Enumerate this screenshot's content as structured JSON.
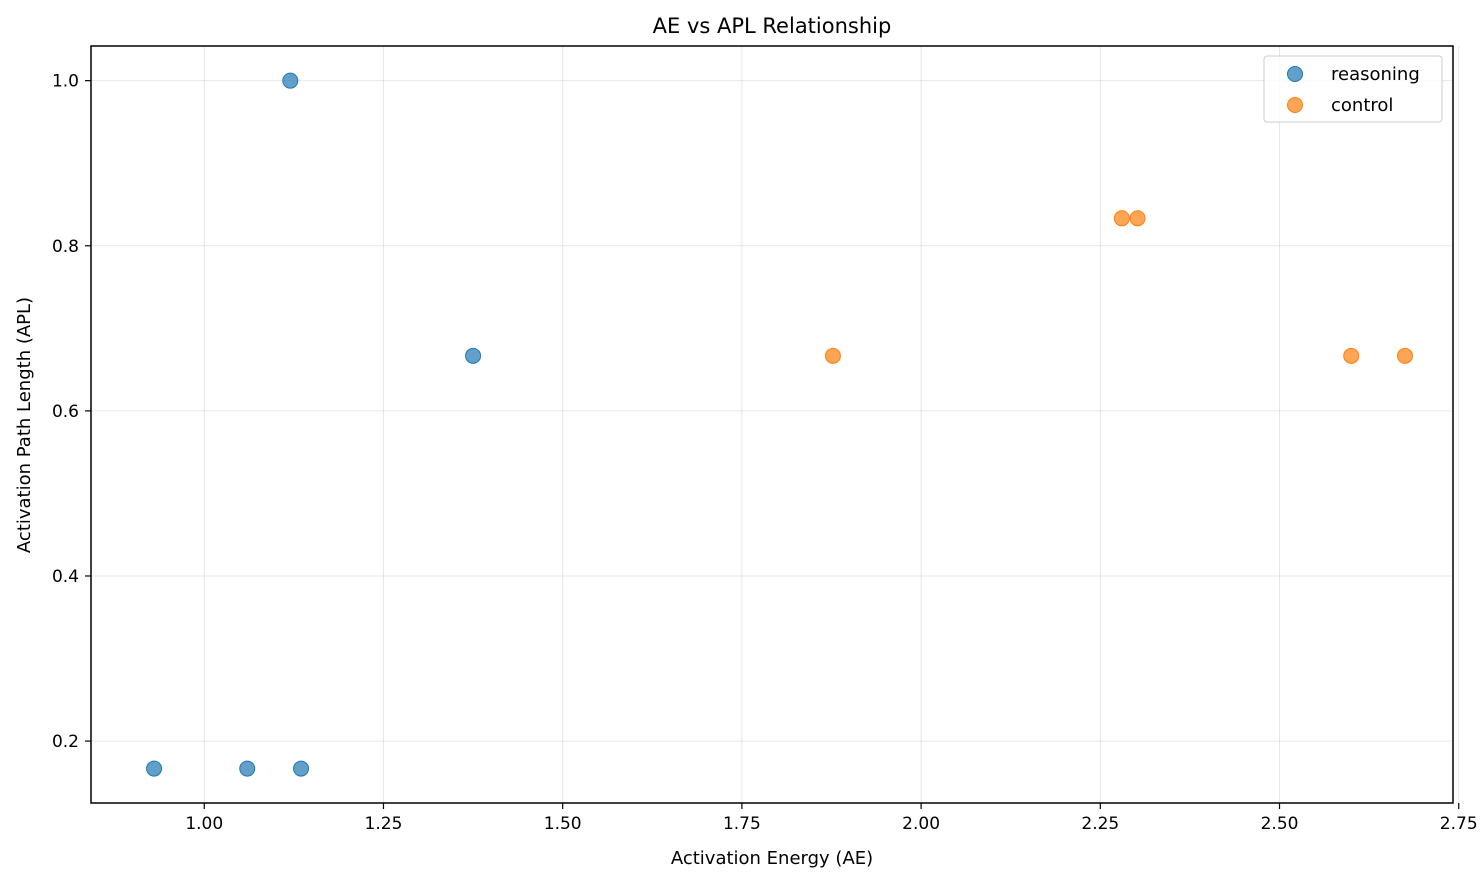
{
  "chart_data": {
    "type": "scatter",
    "title": "AE vs APL Relationship",
    "xlabel": "Activation Energy (AE)",
    "ylabel": "Activation Path Length (APL)",
    "xlim": [
      0.842,
      2.742
    ],
    "ylim": [
      0.125,
      1.042
    ],
    "x_ticks": [
      1.0,
      1.25,
      1.5,
      1.75,
      2.0,
      2.25,
      2.5,
      2.75
    ],
    "x_tick_labels": [
      "1.00",
      "1.25",
      "1.50",
      "1.75",
      "2.00",
      "2.25",
      "2.50",
      "2.75"
    ],
    "y_ticks": [
      0.2,
      0.4,
      0.6,
      0.8,
      1.0
    ],
    "y_tick_labels": [
      "0.2",
      "0.4",
      "0.6",
      "0.8",
      "1.0"
    ],
    "grid": true,
    "legend_position": "top-right",
    "series": [
      {
        "name": "reasoning",
        "color": "#1f77b4",
        "points": [
          {
            "x": 0.93,
            "y": 0.1667
          },
          {
            "x": 1.06,
            "y": 0.1667
          },
          {
            "x": 1.135,
            "y": 0.1667
          },
          {
            "x": 1.12,
            "y": 1.0
          },
          {
            "x": 1.375,
            "y": 0.6667
          }
        ]
      },
      {
        "name": "control",
        "color": "#ff7f0e",
        "points": [
          {
            "x": 1.877,
            "y": 0.6667
          },
          {
            "x": 2.28,
            "y": 0.8333
          },
          {
            "x": 2.302,
            "y": 0.8333
          },
          {
            "x": 2.6,
            "y": 0.6667
          },
          {
            "x": 2.675,
            "y": 0.6667
          }
        ]
      }
    ]
  }
}
